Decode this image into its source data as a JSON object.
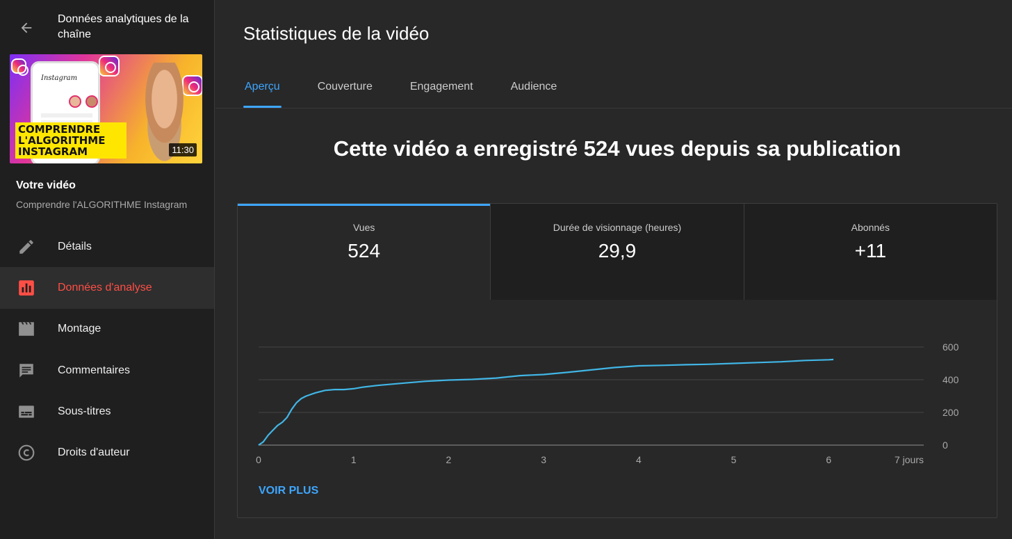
{
  "sidebar": {
    "title": "Données analytiques de la chaîne",
    "thumbnail": {
      "caption_lines": [
        "COMPRENDRE",
        "L'ALGORITHME",
        "INSTAGRAM"
      ],
      "phone_text": "Instagram",
      "duration": "11:30"
    },
    "your_video_label": "Votre vidéo",
    "video_name": "Comprendre l'ALGORITHME Instagram",
    "items": [
      {
        "label": "Détails",
        "icon": "pencil-icon"
      },
      {
        "label": "Données d'analyse",
        "icon": "analytics-icon",
        "active": true
      },
      {
        "label": "Montage",
        "icon": "clapperboard-icon"
      },
      {
        "label": "Commentaires",
        "icon": "comment-icon"
      },
      {
        "label": "Sous-titres",
        "icon": "subtitles-icon"
      },
      {
        "label": "Droits d'auteur",
        "icon": "copyright-icon"
      }
    ]
  },
  "main": {
    "title": "Statistiques de la vidéo",
    "tabs": [
      {
        "label": "Aperçu",
        "active": true
      },
      {
        "label": "Couverture"
      },
      {
        "label": "Engagement"
      },
      {
        "label": "Audience"
      }
    ],
    "headline": "Cette vidéo a enregistré 524 vues depuis sa publication",
    "metrics": [
      {
        "label": "Vues",
        "value": "524"
      },
      {
        "label": "Durée de visionnage (heures)",
        "value": "29,9"
      },
      {
        "label": "Abonnés",
        "value": "+11"
      }
    ],
    "see_more": "VOIR PLUS"
  },
  "colors": {
    "accent": "#3ea6ff",
    "active_nav": "#ff4e45",
    "line": "#41b6e6"
  },
  "chart_data": {
    "type": "line",
    "title": "",
    "xlabel": "",
    "ylabel": "",
    "x_tick_labels": [
      "0",
      "1",
      "2",
      "3",
      "4",
      "5",
      "6",
      "7 jours"
    ],
    "y_tick_labels": [
      "0",
      "200",
      "400",
      "600"
    ],
    "xlim": [
      0,
      7
    ],
    "ylim": [
      0,
      600
    ],
    "grid": true,
    "series": [
      {
        "x": [
          0,
          0.05,
          0.1,
          0.15,
          0.2,
          0.25,
          0.3,
          0.35,
          0.4,
          0.45,
          0.5,
          0.55,
          0.6,
          0.7,
          0.8,
          0.9,
          1.0,
          1.1,
          1.25,
          1.5,
          1.75,
          2.0,
          2.25,
          2.5,
          2.75,
          3.0,
          3.25,
          3.5,
          3.75,
          4.0,
          4.25,
          4.5,
          4.75,
          5.0,
          5.25,
          5.5,
          5.75,
          6.0,
          6.05
        ],
        "y": [
          0,
          20,
          60,
          90,
          120,
          140,
          170,
          220,
          260,
          285,
          300,
          310,
          320,
          335,
          340,
          340,
          345,
          355,
          365,
          378,
          390,
          398,
          402,
          410,
          425,
          432,
          445,
          460,
          475,
          485,
          488,
          492,
          495,
          500,
          505,
          510,
          518,
          522,
          524
        ]
      }
    ]
  }
}
